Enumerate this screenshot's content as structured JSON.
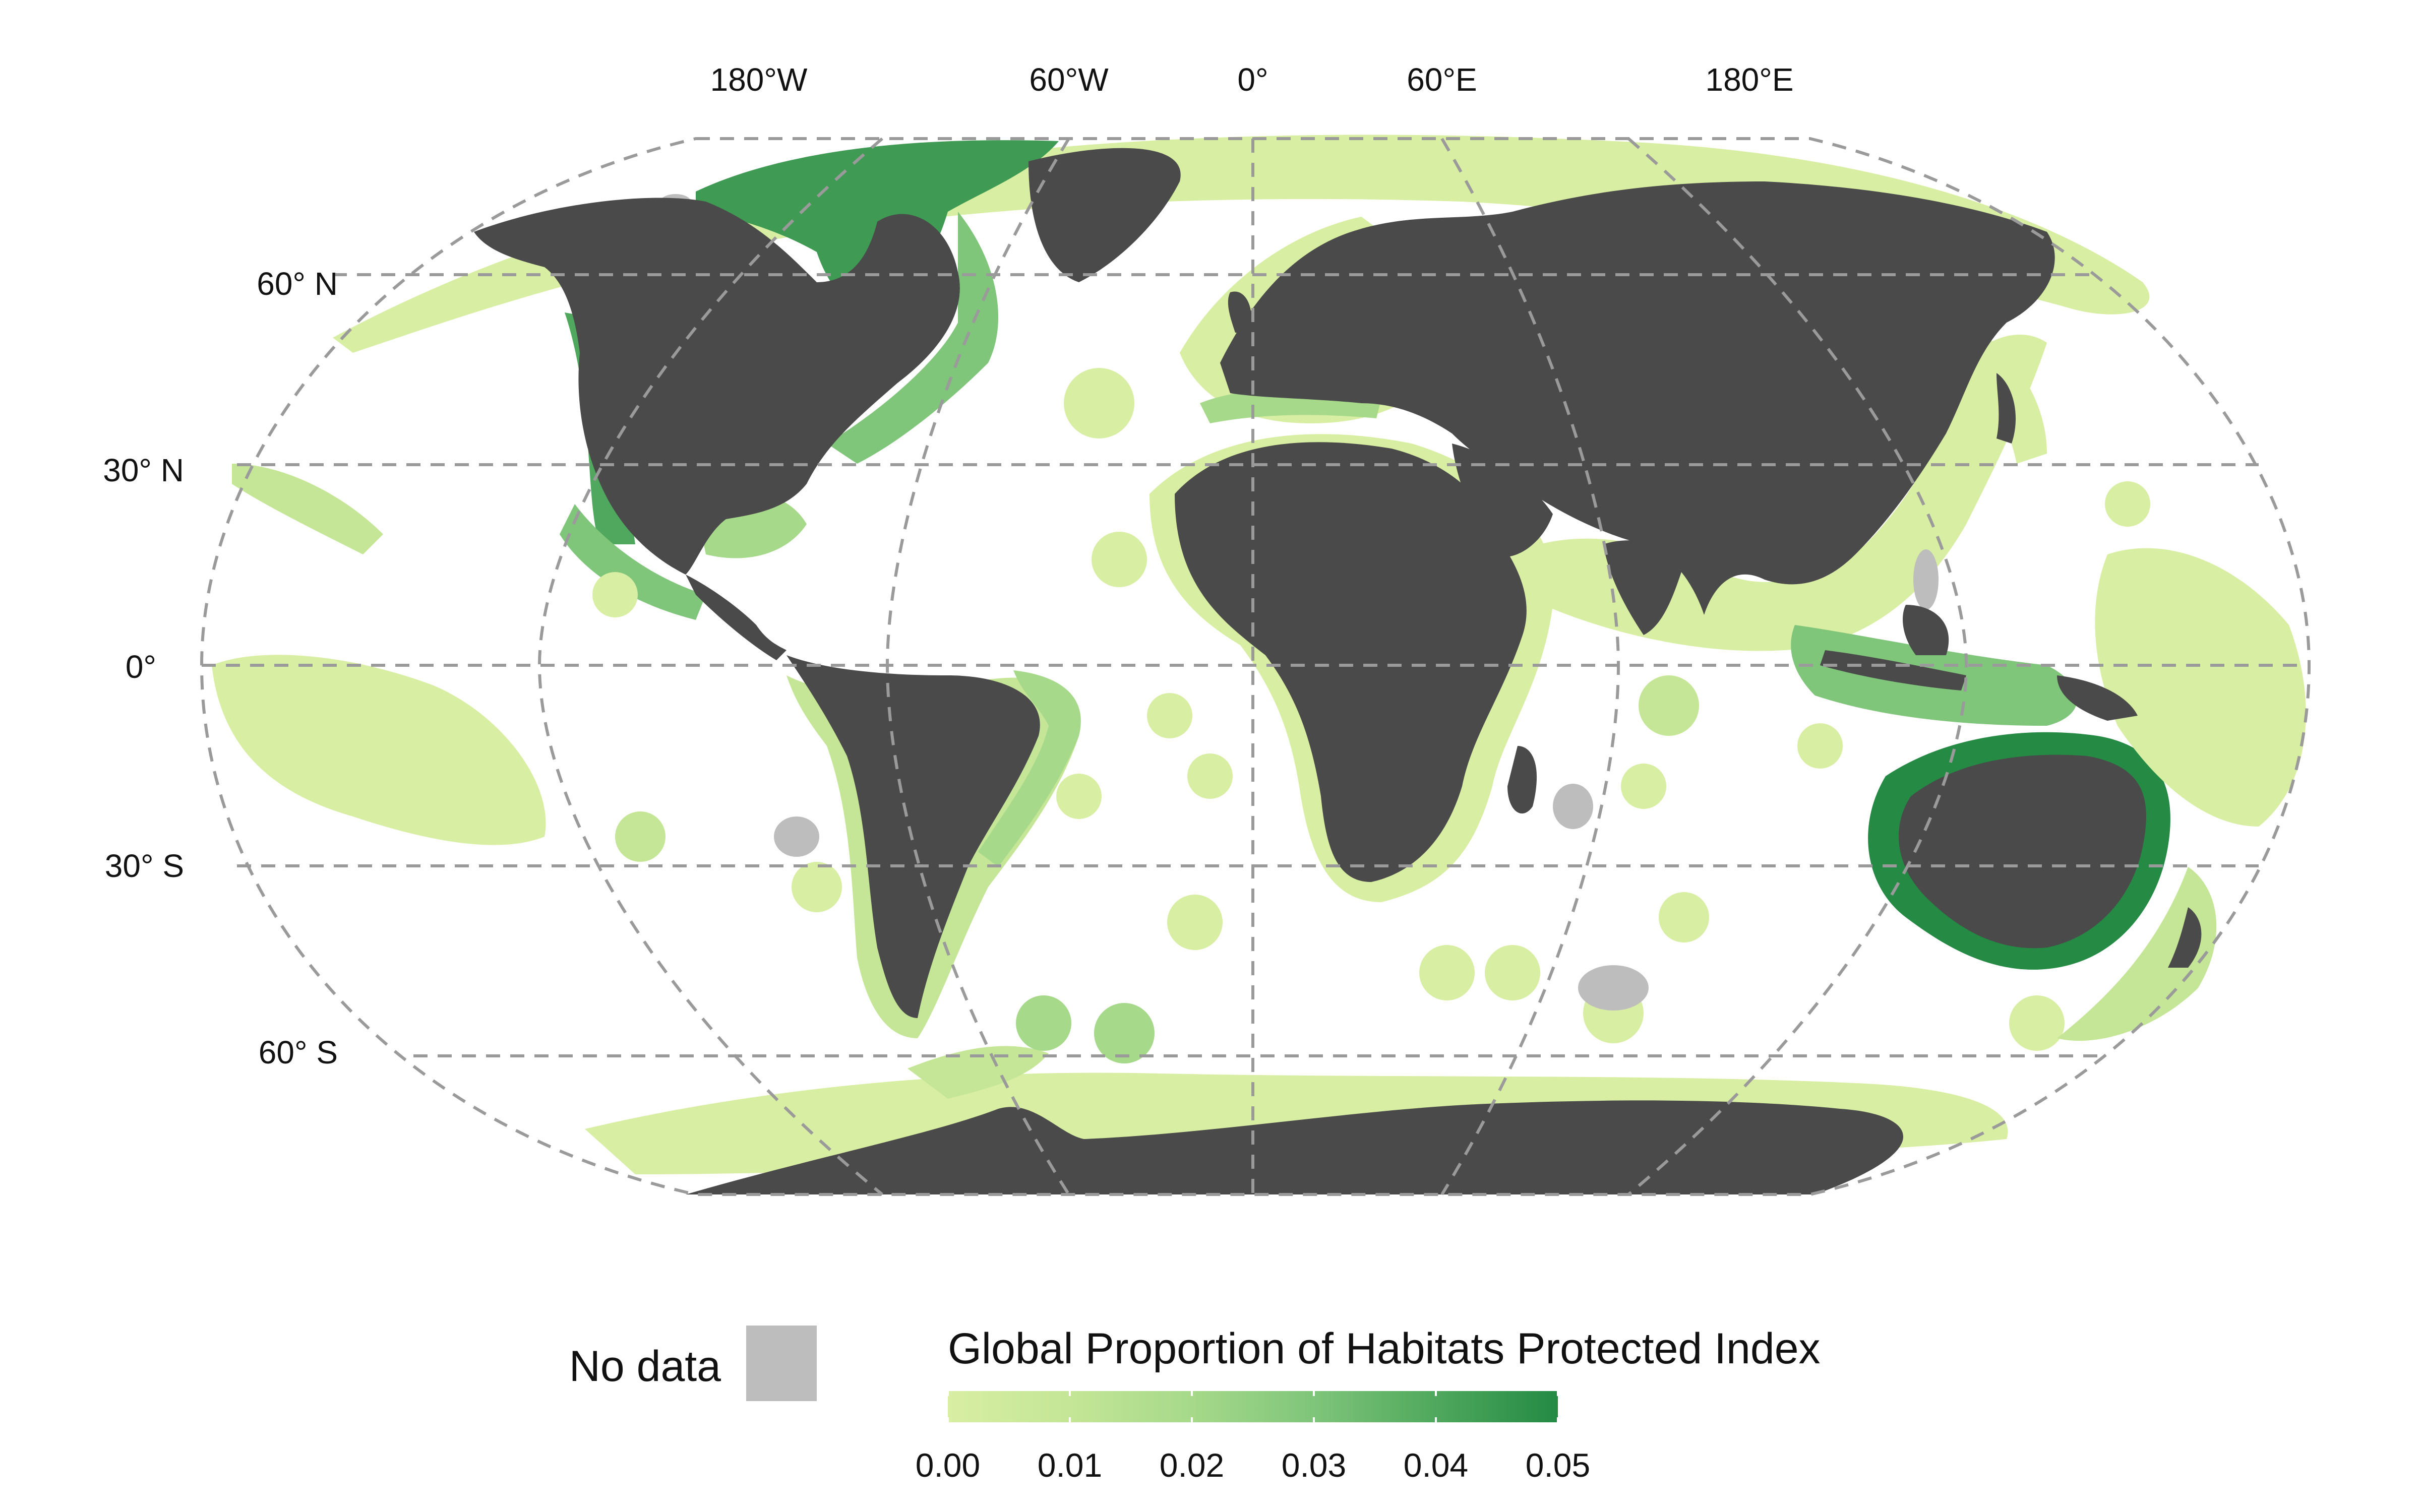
{
  "map": {
    "projection": "robinson",
    "land_color": "#4a4a4a",
    "ocean_color": "#ffffff",
    "graticule_color": "#9a9a9a"
  },
  "longitude_labels": [
    "180°W",
    "60°W",
    "0°",
    "60°E",
    "180°E"
  ],
  "latitude_labels": [
    "60° N",
    "30° N",
    "0°",
    "30° S",
    "60° S"
  ],
  "legend": {
    "title": "Global Proportion of Habitats Protected Index",
    "ticks": [
      "0.00",
      "0.01",
      "0.02",
      "0.03",
      "0.04",
      "0.05"
    ],
    "min": 0.0,
    "max": 0.05,
    "colors": [
      "#d8eea3",
      "#c4e696",
      "#a6d98a",
      "#7fc57a",
      "#4fa85d",
      "#248a44"
    ]
  },
  "no_data": {
    "label": "No data",
    "color": "#bdbdbd"
  },
  "regions": [
    {
      "name": "north-america-coast",
      "value": 0.035
    },
    {
      "name": "hudson-bay-arctic-canada",
      "value": 0.04
    },
    {
      "name": "gulf-of-mexico",
      "value": 0.025
    },
    {
      "name": "brazil-coast",
      "value": 0.02
    },
    {
      "name": "mediterranean",
      "value": 0.02
    },
    {
      "name": "indonesia",
      "value": 0.025
    },
    {
      "name": "australia-coast",
      "value": 0.05
    },
    {
      "name": "pacific-islands",
      "value": 0.005
    },
    {
      "name": "antarctica-coast",
      "value": 0.005
    },
    {
      "name": "africa-coast",
      "value": 0.003
    },
    {
      "name": "asia-coast",
      "value": 0.005
    },
    {
      "name": "europe-coast",
      "value": 0.008
    }
  ]
}
